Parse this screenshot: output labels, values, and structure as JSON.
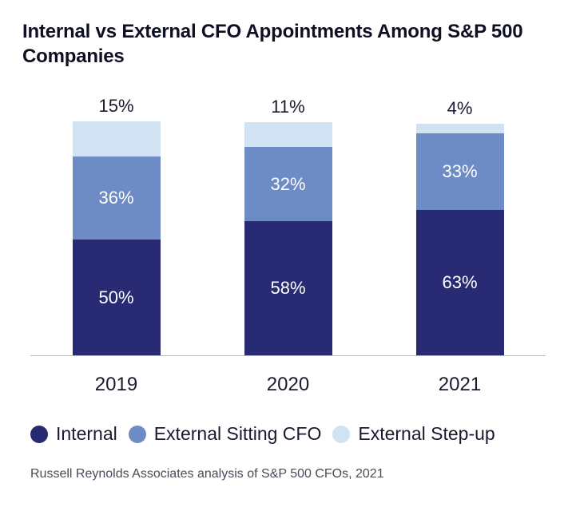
{
  "title": "Internal vs External CFO Appointments Among S&P 500 Companies",
  "chart": {
    "type": "stacked-bar",
    "pixel_scale_per_percent": 2.9,
    "background_color": "#ffffff",
    "axis_color": "#b8b8c4",
    "label_fontsize": 22,
    "category_fontsize": 24,
    "categories": [
      "2019",
      "2020",
      "2021"
    ],
    "series": [
      {
        "key": "internal",
        "label": "Internal",
        "color": "#282a73"
      },
      {
        "key": "external_sitting",
        "label": "External Sitting CFO",
        "color": "#6d8bc4"
      },
      {
        "key": "external_stepup",
        "label": "External Step-up",
        "color": "#d1e3f3"
      }
    ],
    "stacks": [
      {
        "category": "2019",
        "top_label": "15%",
        "segments": [
          {
            "key": "external_stepup",
            "value": 15,
            "label": "",
            "color": "#d1e3f3",
            "text_color": "#ffffff"
          },
          {
            "key": "external_sitting",
            "value": 36,
            "label": "36%",
            "color": "#6d8bc4",
            "text_color": "#ffffff"
          },
          {
            "key": "internal",
            "value": 50,
            "label": "50%",
            "color": "#282a73",
            "text_color": "#ffffff"
          }
        ]
      },
      {
        "category": "2020",
        "top_label": "11%",
        "segments": [
          {
            "key": "external_stepup",
            "value": 11,
            "label": "",
            "color": "#d1e3f3",
            "text_color": "#ffffff"
          },
          {
            "key": "external_sitting",
            "value": 32,
            "label": "32%",
            "color": "#6d8bc4",
            "text_color": "#ffffff"
          },
          {
            "key": "internal",
            "value": 58,
            "label": "58%",
            "color": "#282a73",
            "text_color": "#ffffff"
          }
        ]
      },
      {
        "category": "2021",
        "top_label": "4%",
        "segments": [
          {
            "key": "external_stepup",
            "value": 4,
            "label": "",
            "color": "#d1e3f3",
            "text_color": "#ffffff"
          },
          {
            "key": "external_sitting",
            "value": 33,
            "label": "33%",
            "color": "#6d8bc4",
            "text_color": "#ffffff"
          },
          {
            "key": "internal",
            "value": 63,
            "label": "63%",
            "color": "#282a73",
            "text_color": "#ffffff"
          }
        ]
      }
    ]
  },
  "legend": {
    "items": [
      {
        "label": "Internal",
        "color": "#282a73"
      },
      {
        "label": "External Sitting CFO",
        "color": "#6d8bc4"
      },
      {
        "label": "External Step-up",
        "color": "#d1e3f3"
      }
    ]
  },
  "source": "Russell Reynolds Associates analysis of S&P 500 CFOs, 2021"
}
